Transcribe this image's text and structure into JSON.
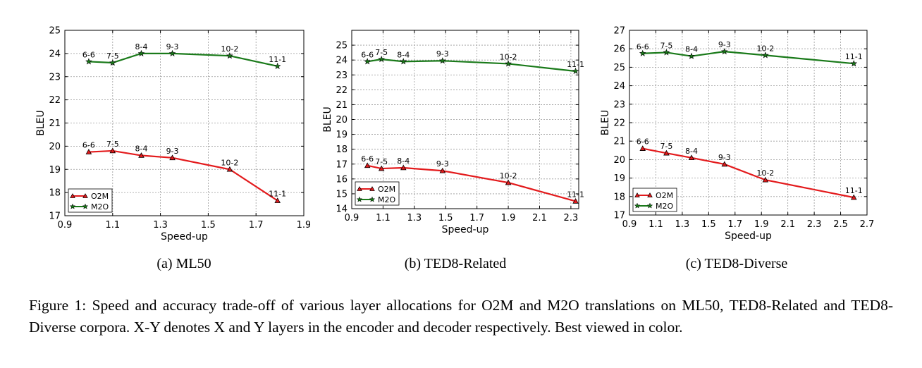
{
  "figure_caption": "Figure 1: Speed and accuracy trade-off of various layer allocations for O2M and M2O translations on ML50, TED8-Related and TED8-Diverse corpora. X-Y denotes X and Y layers in the encoder and decoder respectively. Best viewed in color.",
  "colors": {
    "o2m": "#e31a1c",
    "m2o": "#1a7a1a",
    "grid": "#9a9a9a"
  },
  "chart_data": [
    {
      "type": "line",
      "caption": "(a) ML50",
      "xlabel": "Speed-up",
      "ylabel": "BLEU",
      "xlim": [
        0.9,
        1.9
      ],
      "ylim": [
        17,
        25
      ],
      "xticks": [
        "0.9",
        "1.1",
        "1.3",
        "1.5",
        "1.7",
        "1.9"
      ],
      "yticks": [
        "17",
        "18",
        "19",
        "20",
        "21",
        "22",
        "23",
        "24",
        "25"
      ],
      "grid": true,
      "legend": "lower-left",
      "series": [
        {
          "name": "O2M",
          "marker": "triangle",
          "x": [
            1.0,
            1.1,
            1.22,
            1.35,
            1.59,
            1.79
          ],
          "y": [
            19.75,
            19.8,
            19.6,
            19.5,
            19.0,
            17.65
          ],
          "labels": [
            "6-6",
            "7-5",
            "8-4",
            "9-3",
            "10-2",
            "11-1"
          ]
        },
        {
          "name": "M2O",
          "marker": "star",
          "x": [
            1.0,
            1.1,
            1.22,
            1.35,
            1.59,
            1.79
          ],
          "y": [
            23.65,
            23.6,
            24.0,
            24.0,
            23.9,
            23.45
          ],
          "labels": [
            "6-6",
            "7-5",
            "8-4",
            "9-3",
            "10-2",
            "11-1"
          ]
        }
      ]
    },
    {
      "type": "line",
      "caption": "(b) TED8-Related",
      "xlabel": "Speed-up",
      "ylabel": "BLEU",
      "xlim": [
        0.9,
        2.35
      ],
      "ylim": [
        14,
        26
      ],
      "xticks": [
        "0.9",
        "1.1",
        "1.3",
        "1.5",
        "1.7",
        "1.9",
        "2.1",
        "2.3"
      ],
      "yticks": [
        "14",
        "15",
        "16",
        "17",
        "18",
        "19",
        "20",
        "21",
        "22",
        "23",
        "24",
        "25"
      ],
      "grid": true,
      "legend": "lower-left",
      "series": [
        {
          "name": "O2M",
          "marker": "triangle",
          "x": [
            1.0,
            1.09,
            1.23,
            1.48,
            1.9,
            2.33
          ],
          "y": [
            16.9,
            16.7,
            16.75,
            16.55,
            15.75,
            14.5
          ],
          "labels": [
            "6-6",
            "7-5",
            "8-4",
            "9-3",
            "10-2",
            "11-1"
          ]
        },
        {
          "name": "M2O",
          "marker": "star",
          "x": [
            1.0,
            1.09,
            1.23,
            1.48,
            1.9,
            2.33
          ],
          "y": [
            23.9,
            24.05,
            23.9,
            23.95,
            23.75,
            23.25
          ],
          "labels": [
            "6-6",
            "7-5",
            "8-4",
            "9-3",
            "10-2",
            "11-1"
          ]
        }
      ]
    },
    {
      "type": "line",
      "caption": "(c) TED8-Diverse",
      "xlabel": "Speed-up",
      "ylabel": "BLEU",
      "xlim": [
        0.9,
        2.7
      ],
      "ylim": [
        17,
        27
      ],
      "xticks": [
        "0.9",
        "1.1",
        "1.3",
        "1.5",
        "1.7",
        "1.9",
        "2.1",
        "2.3",
        "2.5",
        "2.7"
      ],
      "yticks": [
        "17",
        "18",
        "19",
        "20",
        "21",
        "22",
        "23",
        "24",
        "25",
        "26",
        "27"
      ],
      "grid": true,
      "legend": "lower-left",
      "series": [
        {
          "name": "O2M",
          "marker": "triangle",
          "x": [
            1.0,
            1.18,
            1.37,
            1.62,
            1.93,
            2.6
          ],
          "y": [
            20.6,
            20.35,
            20.1,
            19.75,
            18.9,
            17.95
          ],
          "labels": [
            "6-6",
            "7-5",
            "8-4",
            "9-3",
            "10-2",
            "11-1"
          ]
        },
        {
          "name": "M2O",
          "marker": "star",
          "x": [
            1.0,
            1.18,
            1.37,
            1.62,
            1.93,
            2.6
          ],
          "y": [
            25.75,
            25.8,
            25.6,
            25.85,
            25.65,
            25.2
          ],
          "labels": [
            "6-6",
            "7-5",
            "8-4",
            "9-3",
            "10-2",
            "11-1"
          ]
        }
      ]
    }
  ]
}
